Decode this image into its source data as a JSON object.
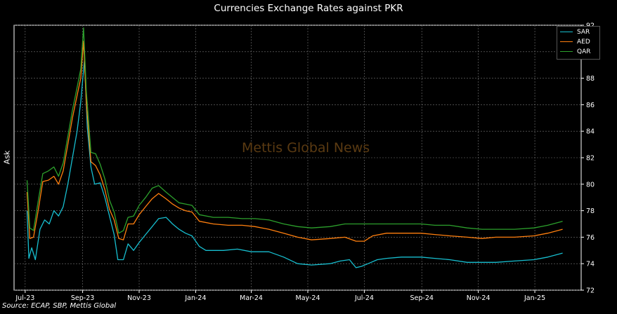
{
  "chart_data": {
    "type": "line",
    "title": "Currencies Exchange Rates against PKR",
    "xlabel": "",
    "ylabel": "Ask",
    "ylim": [
      72,
      92
    ],
    "y_ticks": [
      72,
      74,
      76,
      78,
      80,
      82,
      84,
      86,
      88,
      90,
      92
    ],
    "x_tick_labels": [
      "Jul-23",
      "Sep-23",
      "Nov-23",
      "Jan-24",
      "Mar-24",
      "May-24",
      "Jul-24",
      "Sep-24",
      "Nov-24",
      "Jan-25"
    ],
    "x_tick_dates": [
      "2023-07-01",
      "2023-09-01",
      "2023-11-01",
      "2024-01-01",
      "2024-03-01",
      "2024-05-01",
      "2024-07-01",
      "2024-09-01",
      "2024-11-01",
      "2025-01-01"
    ],
    "grid": true,
    "legend_position": "top-right",
    "series": [
      {
        "name": "SAR",
        "color": "#17becf",
        "points": [
          [
            "2023-07-03",
            78.0
          ],
          [
            "2023-07-05",
            74.4
          ],
          [
            "2023-07-08",
            75.2
          ],
          [
            "2023-07-12",
            74.3
          ],
          [
            "2023-07-17",
            76.6
          ],
          [
            "2023-07-22",
            77.3
          ],
          [
            "2023-07-27",
            77.0
          ],
          [
            "2023-08-01",
            78.0
          ],
          [
            "2023-08-06",
            77.6
          ],
          [
            "2023-08-11",
            78.3
          ],
          [
            "2023-08-16",
            80.0
          ],
          [
            "2023-08-21",
            82.0
          ],
          [
            "2023-08-26",
            84.0
          ],
          [
            "2023-08-30",
            86.2
          ],
          [
            "2023-09-03",
            89.4
          ],
          [
            "2023-09-06",
            84.3
          ],
          [
            "2023-09-10",
            81.3
          ],
          [
            "2023-09-14",
            80.0
          ],
          [
            "2023-09-20",
            80.1
          ],
          [
            "2023-09-25",
            79.0
          ],
          [
            "2023-09-30",
            77.6
          ],
          [
            "2023-10-05",
            76.2
          ],
          [
            "2023-10-09",
            74.3
          ],
          [
            "2023-10-15",
            74.3
          ],
          [
            "2023-10-20",
            75.5
          ],
          [
            "2023-10-26",
            75.0
          ],
          [
            "2023-11-01",
            75.6
          ],
          [
            "2023-11-08",
            76.2
          ],
          [
            "2023-11-15",
            76.8
          ],
          [
            "2023-11-22",
            77.4
          ],
          [
            "2023-11-30",
            77.5
          ],
          [
            "2023-12-07",
            77.0
          ],
          [
            "2023-12-14",
            76.6
          ],
          [
            "2023-12-21",
            76.3
          ],
          [
            "2023-12-28",
            76.1
          ],
          [
            "2024-01-05",
            75.3
          ],
          [
            "2024-01-12",
            75.0
          ],
          [
            "2024-01-20",
            75.0
          ],
          [
            "2024-01-31",
            75.0
          ],
          [
            "2024-02-15",
            75.1
          ],
          [
            "2024-03-01",
            74.9
          ],
          [
            "2024-03-20",
            74.9
          ],
          [
            "2024-04-05",
            74.5
          ],
          [
            "2024-04-20",
            74.0
          ],
          [
            "2024-05-05",
            73.9
          ],
          [
            "2024-05-25",
            74.0
          ],
          [
            "2024-06-05",
            74.2
          ],
          [
            "2024-06-15",
            74.3
          ],
          [
            "2024-06-22",
            73.7
          ],
          [
            "2024-06-28",
            73.8
          ],
          [
            "2024-07-05",
            74.0
          ],
          [
            "2024-07-15",
            74.3
          ],
          [
            "2024-07-25",
            74.4
          ],
          [
            "2024-08-10",
            74.5
          ],
          [
            "2024-08-31",
            74.5
          ],
          [
            "2024-09-15",
            74.4
          ],
          [
            "2024-10-01",
            74.3
          ],
          [
            "2024-10-20",
            74.1
          ],
          [
            "2024-11-05",
            74.1
          ],
          [
            "2024-11-20",
            74.1
          ],
          [
            "2024-12-10",
            74.2
          ],
          [
            "2024-12-31",
            74.3
          ],
          [
            "2025-01-15",
            74.5
          ],
          [
            "2025-01-31",
            74.8
          ]
        ]
      },
      {
        "name": "AED",
        "color": "#ff7f0e",
        "points": [
          [
            "2023-07-03",
            79.4
          ],
          [
            "2023-07-06",
            75.9
          ],
          [
            "2023-07-10",
            76.0
          ],
          [
            "2023-07-15",
            78.0
          ],
          [
            "2023-07-20",
            80.2
          ],
          [
            "2023-07-26",
            80.3
          ],
          [
            "2023-08-01",
            80.6
          ],
          [
            "2023-08-06",
            80.0
          ],
          [
            "2023-08-11",
            81.0
          ],
          [
            "2023-08-16",
            83.0
          ],
          [
            "2023-08-21",
            85.0
          ],
          [
            "2023-08-26",
            86.7
          ],
          [
            "2023-08-30",
            88.0
          ],
          [
            "2023-09-02",
            90.8
          ],
          [
            "2023-09-05",
            86.1
          ],
          [
            "2023-09-10",
            81.7
          ],
          [
            "2023-09-15",
            81.4
          ],
          [
            "2023-09-20",
            80.7
          ],
          [
            "2023-09-25",
            79.6
          ],
          [
            "2023-09-30",
            78.1
          ],
          [
            "2023-10-05",
            77.3
          ],
          [
            "2023-10-10",
            75.9
          ],
          [
            "2023-10-15",
            75.8
          ],
          [
            "2023-10-20",
            77.0
          ],
          [
            "2023-10-26",
            77.0
          ],
          [
            "2023-11-01",
            77.7
          ],
          [
            "2023-11-08",
            78.3
          ],
          [
            "2023-11-15",
            78.9
          ],
          [
            "2023-11-22",
            79.3
          ],
          [
            "2023-11-30",
            78.9
          ],
          [
            "2023-12-07",
            78.5
          ],
          [
            "2023-12-14",
            78.2
          ],
          [
            "2023-12-21",
            78.0
          ],
          [
            "2023-12-28",
            77.9
          ],
          [
            "2024-01-05",
            77.2
          ],
          [
            "2024-01-20",
            77.0
          ],
          [
            "2024-02-05",
            76.9
          ],
          [
            "2024-02-20",
            76.9
          ],
          [
            "2024-03-05",
            76.8
          ],
          [
            "2024-03-20",
            76.6
          ],
          [
            "2024-04-05",
            76.3
          ],
          [
            "2024-04-20",
            76.0
          ],
          [
            "2024-05-05",
            75.8
          ],
          [
            "2024-05-25",
            75.9
          ],
          [
            "2024-06-10",
            76.0
          ],
          [
            "2024-06-22",
            75.7
          ],
          [
            "2024-07-01",
            75.7
          ],
          [
            "2024-07-10",
            76.1
          ],
          [
            "2024-07-25",
            76.3
          ],
          [
            "2024-08-10",
            76.3
          ],
          [
            "2024-08-31",
            76.3
          ],
          [
            "2024-09-15",
            76.2
          ],
          [
            "2024-10-01",
            76.1
          ],
          [
            "2024-10-20",
            76.0
          ],
          [
            "2024-11-05",
            75.9
          ],
          [
            "2024-11-20",
            76.0
          ],
          [
            "2024-12-10",
            76.0
          ],
          [
            "2024-12-31",
            76.1
          ],
          [
            "2025-01-15",
            76.3
          ],
          [
            "2025-01-31",
            76.6
          ]
        ]
      },
      {
        "name": "QAR",
        "color": "#2ca02c",
        "points": [
          [
            "2023-07-03",
            80.3
          ],
          [
            "2023-07-06",
            76.7
          ],
          [
            "2023-07-10",
            76.5
          ],
          [
            "2023-07-15",
            78.7
          ],
          [
            "2023-07-20",
            80.8
          ],
          [
            "2023-07-26",
            81.0
          ],
          [
            "2023-08-01",
            81.3
          ],
          [
            "2023-08-06",
            80.6
          ],
          [
            "2023-08-11",
            81.6
          ],
          [
            "2023-08-16",
            83.6
          ],
          [
            "2023-08-21",
            85.6
          ],
          [
            "2023-08-26",
            87.3
          ],
          [
            "2023-08-30",
            88.7
          ],
          [
            "2023-09-02",
            91.8
          ],
          [
            "2023-09-05",
            87.0
          ],
          [
            "2023-09-10",
            82.4
          ],
          [
            "2023-09-15",
            82.3
          ],
          [
            "2023-09-20",
            81.5
          ],
          [
            "2023-09-25",
            80.4
          ],
          [
            "2023-09-30",
            78.8
          ],
          [
            "2023-10-05",
            77.9
          ],
          [
            "2023-10-10",
            76.3
          ],
          [
            "2023-10-15",
            76.5
          ],
          [
            "2023-10-20",
            77.5
          ],
          [
            "2023-10-26",
            77.6
          ],
          [
            "2023-11-01",
            78.4
          ],
          [
            "2023-11-08",
            79.0
          ],
          [
            "2023-11-15",
            79.7
          ],
          [
            "2023-11-22",
            79.9
          ],
          [
            "2023-11-30",
            79.4
          ],
          [
            "2023-12-07",
            79.0
          ],
          [
            "2023-12-14",
            78.6
          ],
          [
            "2023-12-21",
            78.5
          ],
          [
            "2023-12-28",
            78.4
          ],
          [
            "2024-01-05",
            77.7
          ],
          [
            "2024-01-20",
            77.5
          ],
          [
            "2024-02-05",
            77.5
          ],
          [
            "2024-02-20",
            77.4
          ],
          [
            "2024-03-05",
            77.4
          ],
          [
            "2024-03-20",
            77.3
          ],
          [
            "2024-04-05",
            77.0
          ],
          [
            "2024-04-20",
            76.8
          ],
          [
            "2024-05-05",
            76.7
          ],
          [
            "2024-05-25",
            76.8
          ],
          [
            "2024-06-10",
            77.0
          ],
          [
            "2024-06-22",
            77.0
          ],
          [
            "2024-07-01",
            77.0
          ],
          [
            "2024-07-10",
            77.0
          ],
          [
            "2024-07-25",
            77.0
          ],
          [
            "2024-08-10",
            77.0
          ],
          [
            "2024-08-31",
            77.0
          ],
          [
            "2024-09-15",
            76.9
          ],
          [
            "2024-10-01",
            76.9
          ],
          [
            "2024-10-20",
            76.7
          ],
          [
            "2024-11-05",
            76.6
          ],
          [
            "2024-11-20",
            76.6
          ],
          [
            "2024-12-10",
            76.6
          ],
          [
            "2024-12-31",
            76.7
          ],
          [
            "2025-01-15",
            76.9
          ],
          [
            "2025-01-31",
            77.2
          ]
        ]
      }
    ],
    "annotations": [
      "Mettis Global News"
    ]
  },
  "source": "Source: ECAP, SBP, Mettis Global",
  "watermark": "Mettis Global News"
}
